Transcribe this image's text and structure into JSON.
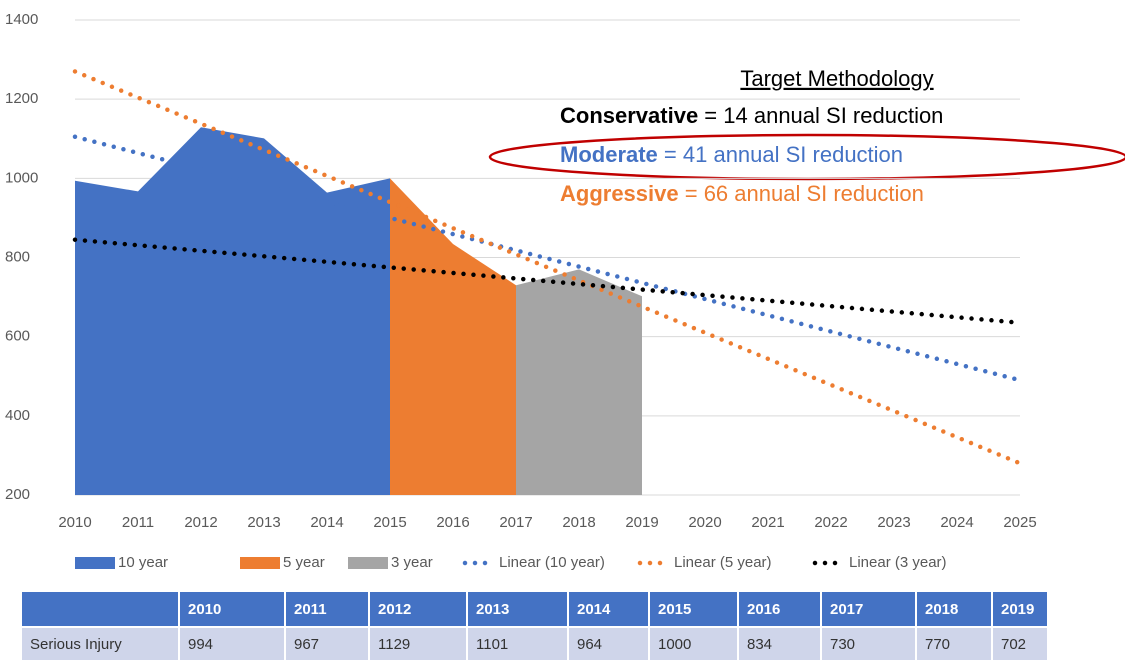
{
  "chart_data": {
    "type": "area",
    "x": [
      2010,
      2011,
      2012,
      2013,
      2014,
      2015,
      2016,
      2017,
      2018,
      2019,
      2020,
      2021,
      2022,
      2023,
      2024,
      2025
    ],
    "xlim": [
      2010,
      2025
    ],
    "xticks": [
      2010,
      2011,
      2012,
      2013,
      2014,
      2015,
      2016,
      2017,
      2018,
      2019,
      2020,
      2021,
      2022,
      2023,
      2024,
      2025
    ],
    "ylim": [
      200,
      1400
    ],
    "yticks": [
      200,
      400,
      600,
      800,
      1000,
      1200,
      1400
    ],
    "grid": true,
    "series": [
      {
        "name": "10 year",
        "type": "area",
        "color": "#4472c4",
        "values": [
          994,
          967,
          1129,
          1101,
          964,
          1000,
          null,
          null,
          null,
          null,
          null,
          null,
          null,
          null,
          null,
          null
        ]
      },
      {
        "name": "5 year",
        "type": "area",
        "color": "#ed7d31",
        "values": [
          null,
          null,
          null,
          null,
          null,
          1000,
          834,
          730,
          null,
          null,
          null,
          null,
          null,
          null,
          null,
          null
        ]
      },
      {
        "name": "3 year",
        "type": "area",
        "color": "#a5a5a5",
        "values": [
          null,
          null,
          null,
          null,
          null,
          null,
          null,
          730,
          770,
          702,
          null,
          null,
          null,
          null,
          null,
          null
        ]
      },
      {
        "name": "Linear (10 year)",
        "type": "trend",
        "color": "#4472c4",
        "x": [
          2010,
          2025
        ],
        "values": [
          1105,
          490
        ]
      },
      {
        "name": "Linear (5 year)",
        "type": "trend",
        "color": "#ed7d31",
        "x": [
          2010,
          2025
        ],
        "values": [
          1270,
          280
        ]
      },
      {
        "name": "Linear (3 year)",
        "type": "trend",
        "color": "#000000",
        "x": [
          2010,
          2025
        ],
        "values": [
          845,
          635
        ]
      }
    ],
    "annotations": {
      "title": "Target Methodology",
      "lines": [
        {
          "bold": "Conservative",
          "text": " = 14 annual SI reduction",
          "color": "#000000"
        },
        {
          "bold": "Moderate",
          "text": " = 41 annual SI reduction",
          "color": "#4472c4"
        },
        {
          "bold": "Aggressive",
          "text": " = 66 annual SI reduction",
          "color": "#ed7d31"
        }
      ]
    }
  },
  "table": {
    "header": [
      "2010",
      "2011",
      "2012",
      "2013",
      "2014",
      "2015",
      "2016",
      "2017",
      "2018",
      "2019"
    ],
    "rows": [
      [
        "Serious Injury",
        "994",
        "967",
        "1129",
        "1101",
        "964",
        "1000",
        "834",
        "730",
        "770",
        "702"
      ]
    ]
  }
}
